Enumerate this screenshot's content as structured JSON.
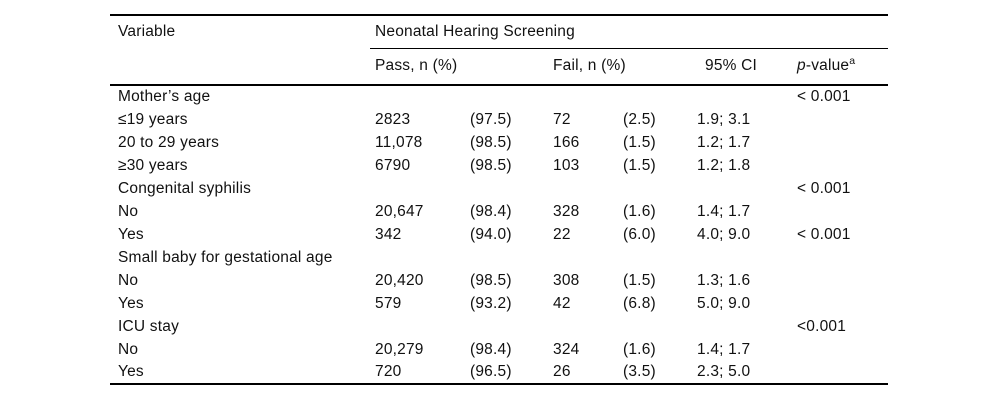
{
  "table": {
    "header": {
      "variable": "Variable",
      "group": "Neonatal Hearing Screening",
      "pass": "Pass, n (%)",
      "fail": "Fail, n (%)",
      "ci": "95% CI",
      "pvalue": {
        "italic": "p",
        "rest": "-value",
        "sup": "a"
      }
    },
    "rows": [
      {
        "type": "section",
        "cells": [
          "Mother’s age",
          "",
          "",
          "",
          "",
          "",
          "< 0.001"
        ]
      },
      {
        "type": "data",
        "cells": [
          "≤19 years",
          "2823",
          "(97.5)",
          "72",
          "(2.5)",
          "1.9; 3.1",
          ""
        ]
      },
      {
        "type": "data",
        "cells": [
          "20 to 29 years",
          "11,078",
          "(98.5)",
          "166",
          "(1.5)",
          "1.2; 1.7",
          ""
        ]
      },
      {
        "type": "data",
        "cells": [
          "≥30 years",
          "6790",
          "(98.5)",
          "103",
          "(1.5)",
          "1.2; 1.8",
          ""
        ]
      },
      {
        "type": "section",
        "cells": [
          "Congenital syphilis",
          "",
          "",
          "",
          "",
          "",
          "< 0.001"
        ]
      },
      {
        "type": "data",
        "cells": [
          "No",
          "20,647",
          "(98.4)",
          "328",
          "(1.6)",
          "1.4; 1.7",
          ""
        ]
      },
      {
        "type": "data",
        "cells": [
          "Yes",
          "342",
          "(94.0)",
          "22",
          "(6.0)",
          "4.0; 9.0",
          "< 0.001"
        ]
      },
      {
        "type": "section",
        "cells": [
          "Small baby for gestational age",
          "",
          "",
          "",
          "",
          "",
          ""
        ]
      },
      {
        "type": "data",
        "cells": [
          "No",
          "20,420",
          "(98.5)",
          "308",
          "(1.5)",
          "1.3; 1.6",
          ""
        ]
      },
      {
        "type": "data",
        "cells": [
          "Yes",
          "579",
          "(93.2)",
          "42",
          "(6.8)",
          "5.0; 9.0",
          ""
        ]
      },
      {
        "type": "section",
        "cells": [
          "ICU stay",
          "",
          "",
          "",
          "",
          "",
          "<0.001"
        ]
      },
      {
        "type": "data",
        "cells": [
          "No",
          "20,279",
          "(98.4)",
          "324",
          "(1.6)",
          "1.4; 1.7",
          ""
        ]
      },
      {
        "type": "data",
        "cells": [
          "Yes",
          "720",
          "(96.5)",
          "26",
          "(3.5)",
          "2.3; 5.0",
          ""
        ]
      }
    ]
  }
}
